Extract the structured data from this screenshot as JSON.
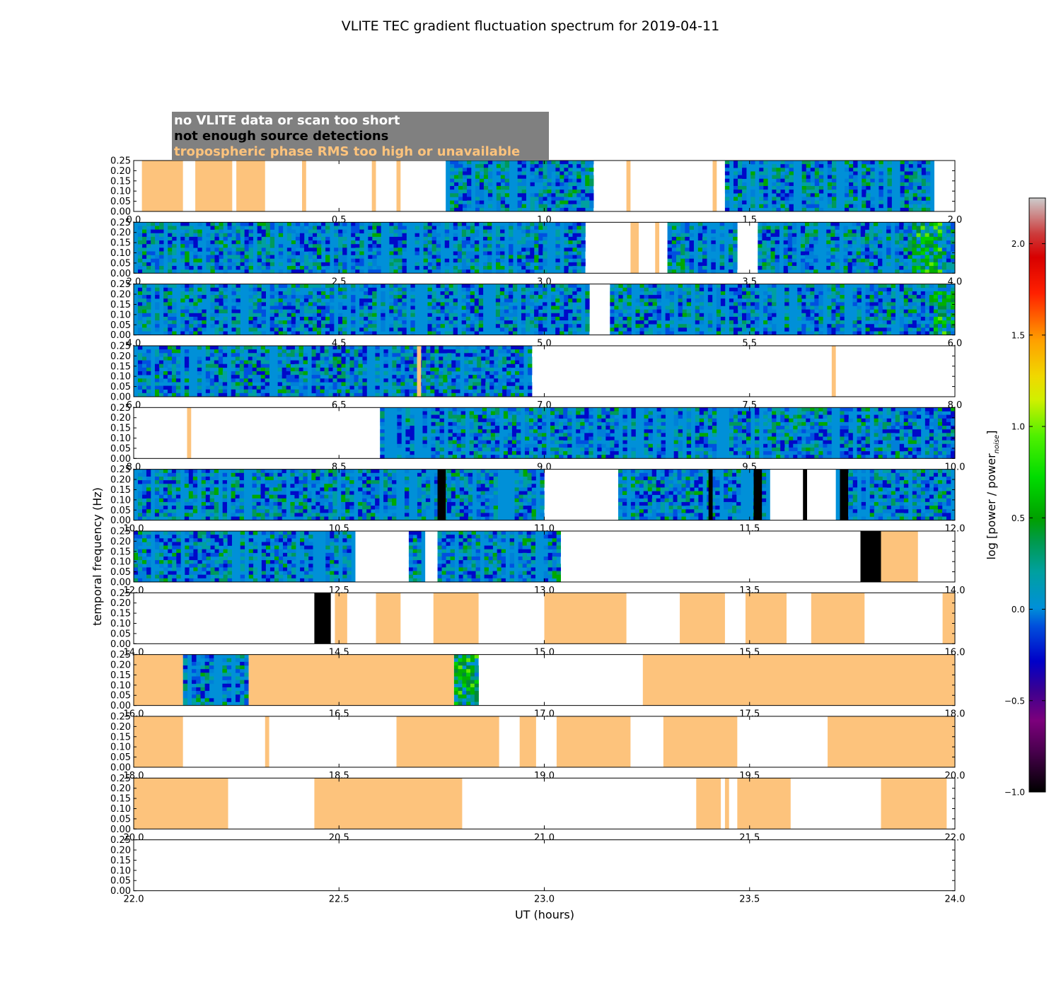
{
  "chart_data": {
    "type": "heatmap",
    "title": "VLITE TEC gradient fluctuation spectrum for 2019-04-11",
    "xlabel": "UT (hours)",
    "ylabel": "temporal frequency (Hz)",
    "ylim": [
      0,
      0.25
    ],
    "yticks": [
      "0.00",
      "0.05",
      "0.10",
      "0.15",
      "0.20",
      "0.25"
    ],
    "hours_per_panel": 2,
    "panel_starts": [
      0,
      2,
      4,
      6,
      8,
      10,
      12,
      14,
      16,
      18,
      20,
      22
    ],
    "xtick_labels": [
      [
        "0.0",
        "0.5",
        "1.0",
        "1.5",
        "2.0"
      ],
      [
        "2.0",
        "2.5",
        "3.0",
        "3.5",
        "4.0"
      ],
      [
        "4.0",
        "4.5",
        "5.0",
        "5.5",
        "6.0"
      ],
      [
        "6.0",
        "6.5",
        "7.0",
        "7.5",
        "8.0"
      ],
      [
        "8.0",
        "8.5",
        "9.0",
        "9.5",
        "10.0"
      ],
      [
        "10.0",
        "10.5",
        "11.0",
        "11.5",
        "12.0"
      ],
      [
        "12.0",
        "12.5",
        "13.0",
        "13.5",
        "14.0"
      ],
      [
        "14.0",
        "14.5",
        "15.0",
        "15.5",
        "16.0"
      ],
      [
        "16.0",
        "16.5",
        "17.0",
        "17.5",
        "18.0"
      ],
      [
        "18.0",
        "18.5",
        "19.0",
        "19.5",
        "20.0"
      ],
      [
        "20.0",
        "20.5",
        "21.0",
        "21.5",
        "22.0"
      ],
      [
        "22.0",
        "22.5",
        "23.0",
        "23.5",
        "24.0"
      ]
    ],
    "legend": {
      "placement": "top-left",
      "entries": [
        {
          "label": "no VLITE data or scan too short",
          "color": "#ffffff"
        },
        {
          "label": "not enough source detections",
          "color": "#000000"
        },
        {
          "label": "tropospheric phase RMS too high or unavailable",
          "color": "#fdc37c"
        }
      ]
    },
    "colorbar": {
      "label": "log [power / power",
      "label_subscript": "noise",
      "label_close": "]",
      "range": [
        -1.0,
        2.25
      ],
      "ticks": [
        "−1.0",
        "−0.5",
        "0.0",
        "0.5",
        "1.0",
        "1.5",
        "2.0"
      ]
    },
    "segments": {
      "data": [
        [
          0.76,
          1.12
        ],
        [
          1.44,
          1.95
        ],
        [
          2.0,
          3.1
        ],
        [
          3.3,
          3.47
        ],
        [
          3.52,
          4.0
        ],
        [
          4.0,
          5.11
        ],
        [
          5.16,
          6.0
        ],
        [
          6.0,
          6.97
        ],
        [
          8.6,
          10.0
        ],
        [
          10.0,
          11.0
        ],
        [
          11.18,
          11.55
        ],
        [
          11.71,
          12.0
        ],
        [
          12.0,
          12.54
        ],
        [
          12.67,
          12.71
        ],
        [
          12.74,
          13.04
        ],
        [
          16.12,
          16.28
        ],
        [
          16.78,
          16.84
        ]
      ],
      "active": [
        [
          1.95,
          2.0
        ],
        [
          3.9,
          3.96
        ],
        [
          5.95,
          6.0
        ],
        [
          11.0,
          11.18
        ],
        [
          12.71,
          12.74
        ],
        [
          16.78,
          16.84
        ]
      ],
      "tropo": [
        [
          0.02,
          0.12
        ],
        [
          0.15,
          0.24
        ],
        [
          0.25,
          0.32
        ],
        [
          0.41,
          0.42
        ],
        [
          0.58,
          0.59
        ],
        [
          0.64,
          0.65
        ],
        [
          1.2,
          1.21
        ],
        [
          1.41,
          1.42
        ],
        [
          3.21,
          3.23
        ],
        [
          3.27,
          3.28
        ],
        [
          6.69,
          6.7
        ],
        [
          7.7,
          7.71
        ],
        [
          8.13,
          8.14
        ],
        [
          13.82,
          13.91
        ],
        [
          14.49,
          14.52
        ],
        [
          14.59,
          14.65
        ],
        [
          14.73,
          14.84
        ],
        [
          15.0,
          15.2
        ],
        [
          15.33,
          15.44
        ],
        [
          15.49,
          15.59
        ],
        [
          15.65,
          15.78
        ],
        [
          15.97,
          16.0
        ],
        [
          16.0,
          16.12
        ],
        [
          16.28,
          16.78
        ],
        [
          17.24,
          18.0
        ],
        [
          18.0,
          18.12
        ],
        [
          18.32,
          18.33
        ],
        [
          18.64,
          18.89
        ],
        [
          18.94,
          18.98
        ],
        [
          19.03,
          19.21
        ],
        [
          19.29,
          19.47
        ],
        [
          19.69,
          20.0
        ],
        [
          20.0,
          20.23
        ],
        [
          20.44,
          20.8
        ],
        [
          21.37,
          21.43
        ],
        [
          21.44,
          21.45
        ],
        [
          21.47,
          21.6
        ],
        [
          21.82,
          21.98
        ]
      ],
      "no_detections": [
        [
          10.74,
          10.76
        ],
        [
          11.4,
          11.41
        ],
        [
          11.51,
          11.53
        ],
        [
          11.63,
          11.64
        ],
        [
          11.72,
          11.74
        ],
        [
          13.77,
          13.82
        ],
        [
          14.44,
          14.48
        ]
      ]
    }
  }
}
